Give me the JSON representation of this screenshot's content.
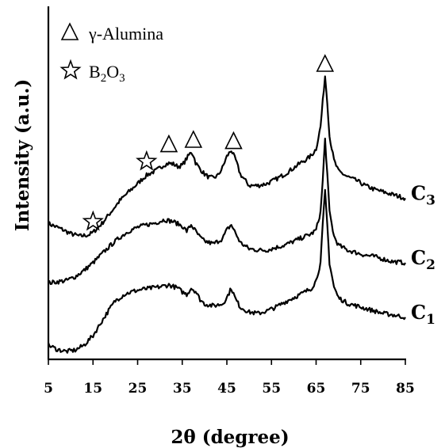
{
  "chart_data": {
    "type": "line",
    "xlabel": "2θ (degree)",
    "ylabel": "Intensity (a.u.)",
    "xlim": [
      5,
      85
    ],
    "x_ticks": [
      "5",
      "15",
      "25",
      "35",
      "45",
      "55",
      "65",
      "75",
      "85"
    ],
    "y_ticks_shown": false,
    "grid": false,
    "legend": {
      "placement": "top-left",
      "entries": [
        {
          "symbol": "triangle",
          "label": "γ-Alumina"
        },
        {
          "symbol": "star",
          "label": "B2O3"
        }
      ]
    },
    "series": [
      {
        "name": "C3",
        "label": {
          "base": "C",
          "sub": "3"
        },
        "x": [
          5,
          8,
          10,
          12,
          14,
          15,
          17,
          19,
          21,
          23,
          25,
          26,
          27,
          28,
          29,
          30,
          31,
          32,
          33,
          34,
          35,
          36,
          37,
          37.5,
          38,
          39,
          40,
          41,
          42,
          43,
          44,
          45,
          46,
          47,
          48,
          50,
          52,
          54,
          56,
          58,
          60,
          62,
          63,
          64,
          65,
          66,
          66.5,
          67,
          67.5,
          68,
          69,
          70,
          72,
          74,
          76,
          78,
          80,
          82,
          85
        ],
        "y": [
          2.12,
          2.03,
          1.96,
          1.92,
          1.94,
          1.98,
          2.12,
          2.3,
          2.48,
          2.62,
          2.75,
          2.82,
          2.88,
          2.92,
          2.95,
          3.0,
          3.05,
          3.07,
          3.06,
          3.02,
          3.04,
          3.15,
          3.25,
          3.2,
          3.08,
          2.98,
          2.9,
          2.85,
          2.84,
          2.88,
          3.0,
          3.18,
          3.28,
          3.12,
          2.9,
          2.72,
          2.72,
          2.75,
          2.82,
          2.9,
          3.0,
          3.1,
          3.14,
          3.2,
          3.3,
          3.65,
          4.05,
          4.45,
          4.05,
          3.5,
          3.12,
          2.95,
          2.86,
          2.8,
          2.72,
          2.66,
          2.62,
          2.58,
          2.52
        ]
      },
      {
        "name": "C2",
        "label": {
          "base": "C",
          "sub": "2"
        },
        "x": [
          5,
          7,
          9,
          11,
          13,
          15,
          17,
          19,
          21,
          23,
          25,
          27,
          29,
          31,
          33,
          35,
          36,
          37,
          38,
          39,
          40,
          42,
          44,
          45,
          46,
          47,
          48,
          50,
          52,
          54,
          56,
          58,
          60,
          62,
          64,
          65,
          66,
          66.5,
          67,
          67.5,
          68,
          69,
          70,
          72,
          74,
          76,
          78,
          80,
          82,
          85
        ],
        "y": [
          1.18,
          1.2,
          1.22,
          1.28,
          1.38,
          1.5,
          1.64,
          1.78,
          1.9,
          2.0,
          2.06,
          2.1,
          2.13,
          2.18,
          2.15,
          2.08,
          2.0,
          2.1,
          2.0,
          1.9,
          1.84,
          1.8,
          1.88,
          2.02,
          2.1,
          1.96,
          1.82,
          1.72,
          1.7,
          1.7,
          1.74,
          1.78,
          1.84,
          1.9,
          1.96,
          2.02,
          2.3,
          2.8,
          3.45,
          2.9,
          2.3,
          1.92,
          1.78,
          1.7,
          1.66,
          1.62,
          1.6,
          1.56,
          1.52,
          1.5
        ]
      },
      {
        "name": "C1",
        "label": {
          "base": "C",
          "sub": "1"
        },
        "x": [
          5,
          7,
          9,
          11,
          13,
          15,
          17,
          19,
          20,
          22,
          24,
          26,
          28,
          30,
          32,
          34,
          35,
          36,
          37,
          38,
          39,
          40,
          42,
          44,
          45,
          46,
          47,
          48,
          50,
          52,
          54,
          56,
          58,
          60,
          62,
          64,
          65,
          66,
          66.5,
          67,
          67.5,
          68,
          69,
          70,
          72,
          74,
          76,
          78,
          80,
          82,
          85
        ],
        "y": [
          0.2,
          0.13,
          0.1,
          0.12,
          0.2,
          0.35,
          0.58,
          0.8,
          0.9,
          1.0,
          1.05,
          1.08,
          1.1,
          1.12,
          1.15,
          1.1,
          1.04,
          1.0,
          1.1,
          1.05,
          0.92,
          0.85,
          0.82,
          0.85,
          0.95,
          1.1,
          0.92,
          0.8,
          0.72,
          0.7,
          0.74,
          0.8,
          0.88,
          0.95,
          1.02,
          1.1,
          1.22,
          1.5,
          2.1,
          2.62,
          2.1,
          1.5,
          1.12,
          0.95,
          0.86,
          0.82,
          0.78,
          0.74,
          0.7,
          0.68,
          0.64
        ]
      }
    ],
    "annotations": [
      {
        "symbol": "star",
        "x": 15,
        "y": 2.15
      },
      {
        "symbol": "star",
        "x": 27,
        "y": 3.1
      },
      {
        "symbol": "triangle",
        "x": 32,
        "y": 3.38
      },
      {
        "symbol": "triangle",
        "x": 37.5,
        "y": 3.45
      },
      {
        "symbol": "triangle",
        "x": 46.5,
        "y": 3.43
      },
      {
        "symbol": "triangle",
        "x": 67,
        "y": 4.65
      }
    ]
  }
}
